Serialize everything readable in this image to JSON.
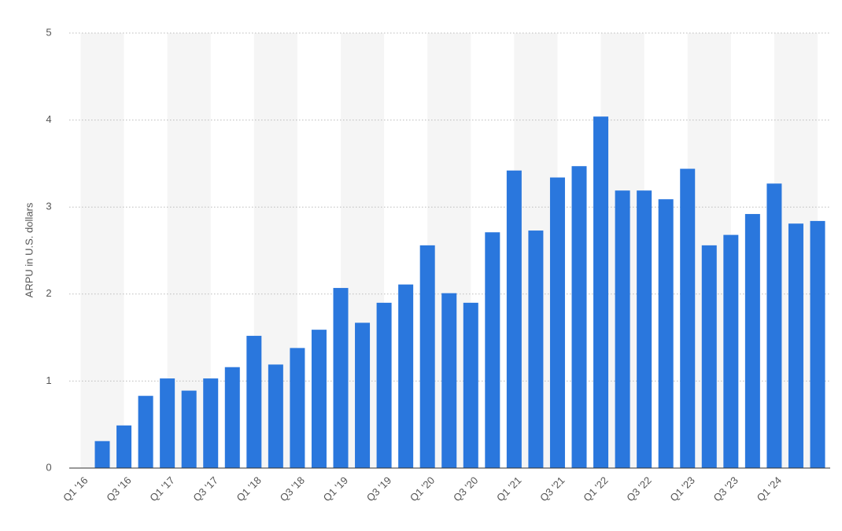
{
  "chart_data": {
    "type": "bar",
    "y_label": "ARPU in U.S. dollars",
    "categories": [
      "Q1 '16",
      null,
      "Q3 '16",
      null,
      "Q1 '17",
      null,
      "Q3 '17",
      null,
      "Q1 '18",
      null,
      "Q3 '18",
      null,
      "Q1 '19",
      null,
      "Q3 '19",
      null,
      "Q1 '20",
      null,
      "Q3 '20",
      null,
      "Q1 '21",
      null,
      "Q3 '21",
      null,
      "Q1 '22",
      null,
      "Q3 '22",
      null,
      "Q1 '23",
      null,
      "Q3 '23",
      null,
      "Q1 '24",
      null
    ],
    "values": [
      0.31,
      0.49,
      0.83,
      1.03,
      0.89,
      1.03,
      1.16,
      1.52,
      1.19,
      1.38,
      1.59,
      2.07,
      1.67,
      1.9,
      2.11,
      2.56,
      2.01,
      1.9,
      2.71,
      3.42,
      2.73,
      3.34,
      3.47,
      4.04,
      3.19,
      3.19,
      3.09,
      3.44,
      2.56,
      2.68,
      2.92,
      3.27,
      2.81,
      2.84
    ],
    "color": "#2a77dd",
    "ylim": [
      0,
      5
    ],
    "yticks": [
      0,
      1,
      2,
      3,
      4,
      5
    ],
    "grid": true
  }
}
